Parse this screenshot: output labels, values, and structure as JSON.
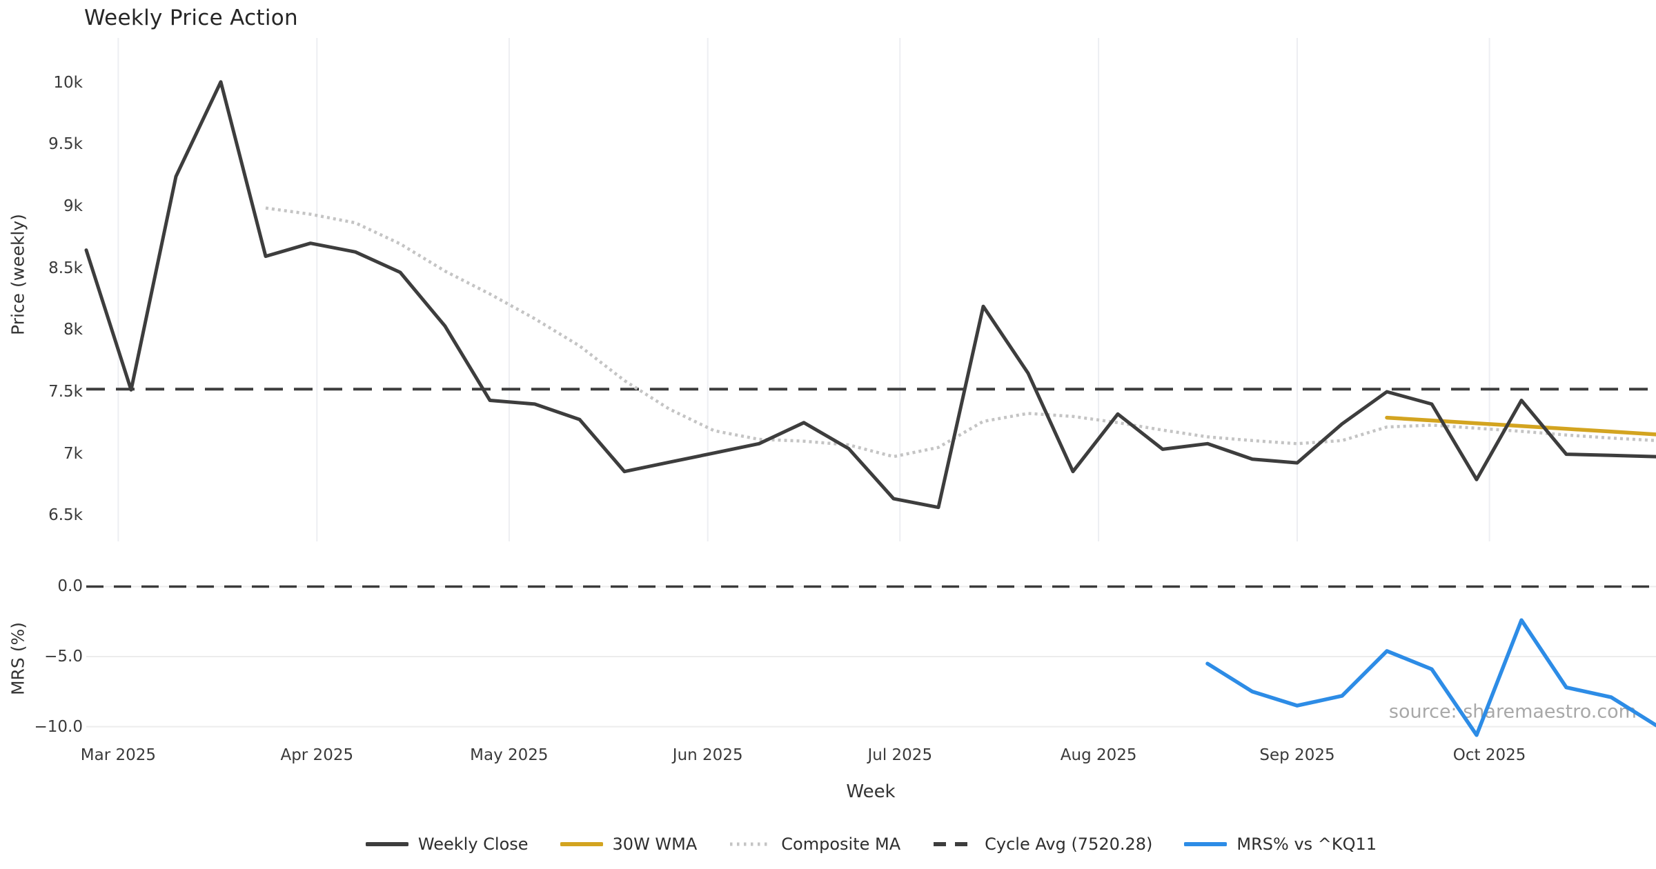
{
  "title": "Weekly Price Action",
  "watermark": "source: sharemaestro.com",
  "axes": {
    "price_ylabel": "Price (weekly)",
    "mrs_ylabel": "MRS (%)",
    "xlabel": "Week"
  },
  "colors": {
    "weekly_close": "#3d3d3d",
    "wma": "#d3a420",
    "composite": "#c4c4c4",
    "cycle_avg": "#3d3d3d",
    "mrs": "#2d8ce6",
    "grid_vertical": "#edeef2",
    "grid_horizontal": "#ececec",
    "zero_dash": "#3a3a3a"
  },
  "legend": {
    "items": [
      {
        "label": "Weekly Close",
        "style": "solid",
        "color": "#3d3d3d"
      },
      {
        "label": "30W WMA",
        "style": "solid",
        "color": "#d3a420"
      },
      {
        "label": "Composite MA",
        "style": "dotted",
        "color": "#c4c4c4"
      },
      {
        "label": "Cycle Avg (7520.28)",
        "style": "dashed",
        "color": "#3d3d3d"
      },
      {
        "label": "MRS% vs ^KQ11",
        "style": "solid",
        "color": "#2d8ce6"
      }
    ]
  },
  "chart_data": [
    {
      "type": "line",
      "panel": "price",
      "title": "Weekly Price Action",
      "xlabel": "Week",
      "ylabel": "Price (weekly)",
      "ylim": [
        6290,
        10360
      ],
      "grid": "vertical",
      "legend_position": "bottom-center",
      "yticks": [
        {
          "value": 10000,
          "label": "10k"
        },
        {
          "value": 9500,
          "label": "9.5k"
        },
        {
          "value": 9000,
          "label": "9k"
        },
        {
          "value": 8500,
          "label": "8.5k"
        },
        {
          "value": 8000,
          "label": "8k"
        },
        {
          "value": 7500,
          "label": "7.5k"
        },
        {
          "value": 7000,
          "label": "7k"
        },
        {
          "value": 6500,
          "label": "6.5k"
        }
      ],
      "xticks": [
        {
          "label": "Mar 2025",
          "day": 5
        },
        {
          "label": "Apr 2025",
          "day": 36
        },
        {
          "label": "May 2025",
          "day": 66
        },
        {
          "label": "Jun 2025",
          "day": 97
        },
        {
          "label": "Jul 2025",
          "day": 127
        },
        {
          "label": "Aug 2025",
          "day": 158
        },
        {
          "label": "Sep 2025",
          "day": 189
        },
        {
          "label": "Oct 2025",
          "day": 219
        }
      ],
      "weeks": [
        "2025-02-24",
        "2025-03-03",
        "2025-03-10",
        "2025-03-17",
        "2025-03-24",
        "2025-03-31",
        "2025-04-07",
        "2025-04-14",
        "2025-04-21",
        "2025-04-28",
        "2025-05-05",
        "2025-05-12",
        "2025-05-19",
        "2025-05-26",
        "2025-06-02",
        "2025-06-09",
        "2025-06-16",
        "2025-06-23",
        "2025-06-30",
        "2025-07-07",
        "2025-07-14",
        "2025-07-21",
        "2025-07-28",
        "2025-08-04",
        "2025-08-11",
        "2025-08-18",
        "2025-08-25",
        "2025-09-01",
        "2025-09-08",
        "2025-09-15",
        "2025-09-22",
        "2025-09-29",
        "2025-10-06",
        "2025-10-13",
        "2025-10-20",
        "2025-10-27"
      ],
      "series": [
        {
          "name": "Weekly Close",
          "style": "solid",
          "start_week": 0,
          "values": [
            8645,
            7515,
            9240,
            10005,
            8595,
            8700,
            8630,
            8465,
            8030,
            7430,
            7400,
            7275,
            6855,
            6930,
            7005,
            7080,
            7250,
            7040,
            6635,
            6565,
            8190,
            7650,
            6855,
            7320,
            7035,
            7080,
            6955,
            6925,
            7240,
            7500,
            7400,
            6790,
            7430,
            6995,
            6985,
            6975
          ]
        },
        {
          "name": "30W WMA",
          "style": "solid",
          "start_week": 29,
          "values": [
            7290,
            7268,
            7245,
            7222,
            7200,
            7178,
            7155
          ]
        },
        {
          "name": "Composite MA",
          "style": "dotted",
          "start_week": 4,
          "values": [
            8985,
            8935,
            8865,
            8695,
            8475,
            8290,
            8090,
            7870,
            7590,
            7360,
            7185,
            7115,
            7100,
            7070,
            6975,
            7050,
            7260,
            7325,
            7300,
            7250,
            7190,
            7135,
            7105,
            7080,
            7105,
            7215,
            7230,
            7205,
            7180,
            7150,
            7125,
            7105
          ]
        },
        {
          "name": "Cycle Avg",
          "style": "dashed-horizontal",
          "value": 7520.28
        }
      ]
    },
    {
      "type": "line",
      "panel": "mrs",
      "ylabel": "MRS (%)",
      "ylim": [
        -11.3,
        1.5
      ],
      "grid": "horizontal",
      "yticks": [
        {
          "value": 0,
          "label": "0.0"
        },
        {
          "value": -5,
          "label": "−5.0"
        },
        {
          "value": -10,
          "label": "−10.0"
        }
      ],
      "zero_line": 0.0,
      "series": [
        {
          "name": "MRS% vs ^KQ11",
          "style": "solid",
          "start_week": 25,
          "values": [
            -5.5,
            -7.5,
            -8.5,
            -7.8,
            -4.6,
            -5.9,
            -10.6,
            -2.4,
            -7.2,
            -7.9,
            -9.9
          ]
        }
      ]
    }
  ]
}
